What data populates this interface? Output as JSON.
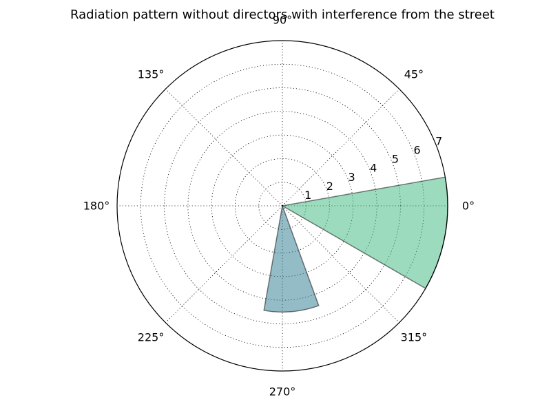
{
  "chart_data": {
    "type": "bar",
    "subtype": "polar",
    "title": "Radiation pattern without directors with interference from the street",
    "angle_unit": "degrees",
    "angle_ticks": [
      "0°",
      "45°",
      "90°",
      "135°",
      "180°",
      "225°",
      "270°",
      "315°"
    ],
    "radial_ticks": [
      "1",
      "2",
      "3",
      "4",
      "5",
      "6",
      "7"
    ],
    "rlim": [
      0,
      7
    ],
    "grid": true,
    "legend": false,
    "bars": [
      {
        "theta_start": -30,
        "theta_end": 10,
        "r": 7,
        "color": "#3cb77f"
      },
      {
        "theta_start": 260,
        "theta_end": 290,
        "r": 4.5,
        "color": "#2a7a8f"
      }
    ]
  }
}
